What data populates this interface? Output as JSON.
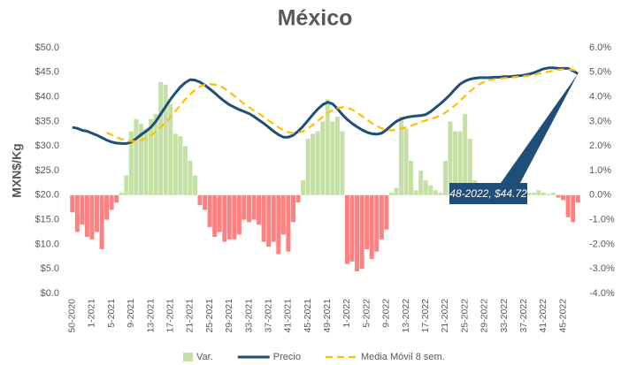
{
  "chart_data": {
    "type": "combo",
    "title": "México",
    "y_label": "MXN$/Kg",
    "categories": [
      "50-2020",
      null,
      null,
      null,
      "1-2021",
      null,
      null,
      null,
      "5-2021",
      null,
      null,
      null,
      "9-2021",
      null,
      null,
      null,
      "13-2021",
      null,
      null,
      null,
      "17-2021",
      null,
      null,
      null,
      "21-2021",
      null,
      null,
      null,
      "25-2021",
      null,
      null,
      null,
      "29-2021",
      null,
      null,
      null,
      "33-2021",
      null,
      null,
      null,
      "37-2021",
      null,
      null,
      null,
      "41-2021",
      null,
      null,
      null,
      "45-2021",
      null,
      null,
      null,
      "49-2021",
      null,
      null,
      null,
      "1-2022",
      null,
      null,
      null,
      "5-2022",
      null,
      null,
      null,
      "9-2022",
      null,
      null,
      null,
      "13-2022",
      null,
      null,
      null,
      "17-2022",
      null,
      null,
      null,
      "21-2022",
      null,
      null,
      null,
      "25-2022",
      null,
      null,
      null,
      "29-2022",
      null,
      null,
      null,
      "33-2022",
      null,
      null,
      null,
      "37-2022",
      null,
      null,
      null,
      "41-2022",
      null,
      null,
      null,
      "45-2022",
      null,
      null,
      null
    ],
    "series": [
      {
        "name": "Var.",
        "type": "bar",
        "axis": "y2",
        "color": "#c5e0a5",
        "negative_color": "#ff8080",
        "values": [
          -0.7,
          -1.5,
          -1.2,
          -1.7,
          -1.8,
          -1.5,
          -2.2,
          -1.0,
          -0.6,
          -0.3,
          0.1,
          0.8,
          2.6,
          3.1,
          2.9,
          2.7,
          3.1,
          3.3,
          4.6,
          4.5,
          3.7,
          2.5,
          2.4,
          2.0,
          1.4,
          0.8,
          -0.4,
          -0.6,
          -1.3,
          -1.7,
          -1.5,
          -1.9,
          -1.8,
          -1.8,
          -1.6,
          -1.0,
          -1.1,
          -1.0,
          -1.2,
          -1.9,
          -2.1,
          -1.9,
          -2.4,
          -1.6,
          -2.3,
          -1.1,
          -0.3,
          0.6,
          2.3,
          2.5,
          2.6,
          3.0,
          3.9,
          3.0,
          3.2,
          2.6,
          -2.8,
          -2.7,
          -3.1,
          -3.0,
          -2.2,
          -2.6,
          -2.3,
          -1.8,
          -1.4,
          0.1,
          0.3,
          3.2,
          2.7,
          1.4,
          0.2,
          1.0,
          0.6,
          0.4,
          0.2,
          0.1,
          1.4,
          3.0,
          2.6,
          2.6,
          3.3,
          2.3,
          0.6,
          0.2,
          0.1,
          0.05,
          0.1,
          0.05,
          0.1,
          0.05,
          0.1,
          0.1,
          0.05,
          0.1,
          0.1,
          0.2,
          0.1,
          0.05,
          0.1,
          -0.1,
          -0.2,
          -0.9,
          -1.1,
          -0.3
        ]
      },
      {
        "name": "Precio",
        "type": "line",
        "color": "#1f4e79",
        "dashed": false,
        "values": [
          33.8,
          33.6,
          33.2,
          33.0,
          32.6,
          32.2,
          31.7,
          31.2,
          30.8,
          30.6,
          30.5,
          30.5,
          30.8,
          31.5,
          32.3,
          33.0,
          33.8,
          35.0,
          36.5,
          38.0,
          39.5,
          40.8,
          42.0,
          42.9,
          43.5,
          43.4,
          43.0,
          42.4,
          41.6,
          40.8,
          39.9,
          39.1,
          38.4,
          37.9,
          37.4,
          37.0,
          36.6,
          36.0,
          35.3,
          34.6,
          33.8,
          33.0,
          32.3,
          31.8,
          31.8,
          32.2,
          33.0,
          34.0,
          35.2,
          36.4,
          37.5,
          38.4,
          38.9,
          38.6,
          37.6,
          36.4,
          35.4,
          34.6,
          33.9,
          33.3,
          32.8,
          32.5,
          32.4,
          32.6,
          33.3,
          34.2,
          35.0,
          35.5,
          35.8,
          36.0,
          36.1,
          36.2,
          36.4,
          37.0,
          37.8,
          38.6,
          39.5,
          40.5,
          41.6,
          42.6,
          43.2,
          43.6,
          43.8,
          43.9,
          43.9,
          43.9,
          44.0,
          44.0,
          44.1,
          44.1,
          44.2,
          44.3,
          44.4,
          44.6,
          44.9,
          45.3,
          45.7,
          45.9,
          45.9,
          45.8,
          45.8,
          45.8,
          45.3,
          44.72
        ]
      },
      {
        "name": "Media Móvil 8 sem.",
        "type": "line",
        "color": "#ffc000",
        "dashed": true,
        "values": [
          null,
          null,
          null,
          null,
          null,
          null,
          null,
          32.7,
          32.3,
          31.8,
          31.4,
          31.1,
          31.0,
          31.0,
          31.2,
          31.6,
          32.2,
          32.9,
          33.8,
          34.8,
          35.9,
          37.1,
          38.3,
          39.5,
          40.5,
          41.4,
          42.1,
          42.5,
          42.6,
          42.5,
          42.2,
          41.7,
          41.0,
          40.2,
          39.4,
          38.6,
          37.9,
          37.2,
          36.6,
          35.9,
          35.2,
          34.5,
          33.8,
          33.2,
          32.8,
          32.6,
          32.7,
          33.0,
          33.6,
          34.3,
          35.1,
          35.9,
          36.7,
          37.3,
          37.7,
          37.9,
          37.8,
          37.4,
          36.8,
          36.1,
          35.4,
          34.7,
          34.1,
          33.6,
          33.3,
          33.2,
          33.3,
          33.5,
          33.8,
          34.1,
          34.5,
          34.9,
          35.2,
          35.5,
          35.8,
          36.2,
          36.8,
          37.5,
          38.3,
          39.2,
          40.2,
          41.1,
          41.9,
          42.6,
          43.1,
          43.4,
          43.6,
          43.7,
          43.8,
          43.9,
          44.0,
          44.1,
          44.2,
          44.3,
          44.5,
          44.7,
          44.9,
          45.1,
          45.3,
          45.5,
          45.6,
          45.6,
          45.5,
          45.3
        ]
      }
    ],
    "ylim": [
      0,
      50
    ],
    "yticks": [
      {
        "value": 0,
        "label": "$0.0"
      },
      {
        "value": 5,
        "label": "$5.0"
      },
      {
        "value": 10,
        "label": "$10.0"
      },
      {
        "value": 15,
        "label": "$15.0"
      },
      {
        "value": 20,
        "label": "$20.0"
      },
      {
        "value": 25,
        "label": "$25.0"
      },
      {
        "value": 30,
        "label": "$30.0"
      },
      {
        "value": 35,
        "label": "$35.0"
      },
      {
        "value": 40,
        "label": "$40.0"
      },
      {
        "value": 45,
        "label": "$45.0"
      },
      {
        "value": 50,
        "label": "$50.0"
      }
    ],
    "y2lim": [
      -4,
      6
    ],
    "y2ticks": [
      {
        "value": -4,
        "label": "-4.0%"
      },
      {
        "value": -3,
        "label": "-3.0%"
      },
      {
        "value": -2,
        "label": "-2.0%"
      },
      {
        "value": -1,
        "label": "-1.0%"
      },
      {
        "value": 0,
        "label": "0.0%"
      },
      {
        "value": 1,
        "label": "1.0%"
      },
      {
        "value": 2,
        "label": "2.0%"
      },
      {
        "value": 3,
        "label": "3.0%"
      },
      {
        "value": 4,
        "label": "4.0%"
      },
      {
        "value": 5,
        "label": "5.0%"
      },
      {
        "value": 6,
        "label": "6.0%"
      }
    ],
    "grid": false,
    "legend": "bottom",
    "annotation": {
      "text": "48-2022,  $44.72",
      "color": "#1f4e79"
    }
  }
}
